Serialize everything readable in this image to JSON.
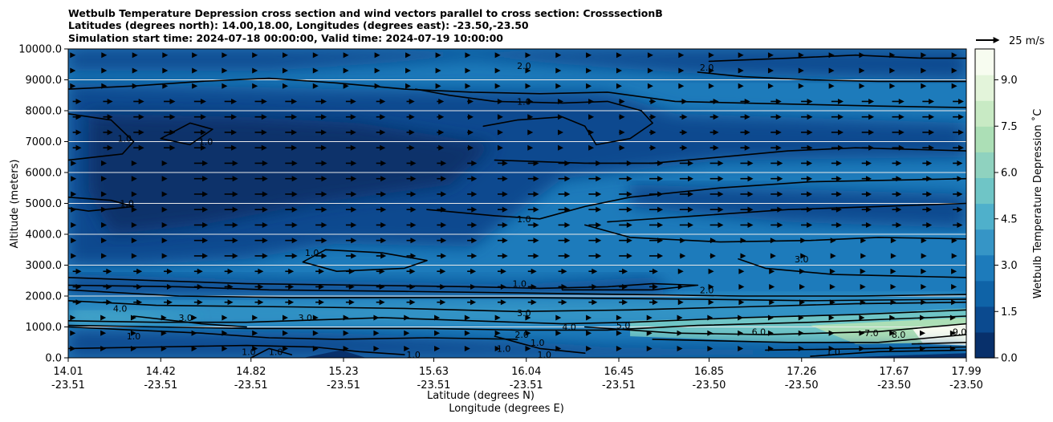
{
  "chart_data": {
    "type": "heatmap",
    "title_lines": [
      "Wetbulb Temperature Depression cross section and wind vectors parallel to cross section: CrosssectionB",
      "Latitudes (degrees north): 14.00,18.00, Longitudes (degrees east): -23.50,-23.50",
      "Simulation start time: 2024-07-18 00:00:00, Valid time: 2024-07-19 10:00:00"
    ],
    "xlabel": "Latitude (degrees N)",
    "xlabel2": "Longitude (degrees E)",
    "ylabel": "Altitude (meters)",
    "colorbar_label": "Wetbulb Temperature Depression ˚C",
    "quiver_key_label": "25 m/s",
    "xlim": [
      14.01,
      17.99
    ],
    "ylim": [
      0,
      10000
    ],
    "x_ticks": [
      {
        "lat": "14.01",
        "lon": "-23.51",
        "value": 14.01
      },
      {
        "lat": "14.42",
        "lon": "-23.51",
        "value": 14.42
      },
      {
        "lat": "14.82",
        "lon": "-23.51",
        "value": 14.82
      },
      {
        "lat": "15.23",
        "lon": "-23.51",
        "value": 15.23
      },
      {
        "lat": "15.63",
        "lon": "-23.51",
        "value": 15.63
      },
      {
        "lat": "16.04",
        "lon": "-23.51",
        "value": 16.04
      },
      {
        "lat": "16.45",
        "lon": "-23.51",
        "value": 16.45
      },
      {
        "lat": "16.85",
        "lon": "-23.50",
        "value": 16.85
      },
      {
        "lat": "17.26",
        "lon": "-23.50",
        "value": 17.26
      },
      {
        "lat": "17.67",
        "lon": "-23.50",
        "value": 17.67
      },
      {
        "lat": "17.99",
        "lon": "-23.50",
        "value": 17.99
      }
    ],
    "y_ticks": [
      "0.0",
      "1000.0",
      "2000.0",
      "3000.0",
      "4000.0",
      "5000.0",
      "6000.0",
      "7000.0",
      "8000.0",
      "9000.0",
      "10000.0"
    ],
    "y_tick_values": [
      0,
      1000,
      2000,
      3000,
      4000,
      5000,
      6000,
      7000,
      8000,
      9000,
      10000
    ],
    "colorbar_ticks": [
      "0.0",
      "1.5",
      "3.0",
      "4.5",
      "6.0",
      "7.5",
      "9.0"
    ],
    "colorbar_tick_values": [
      0,
      1.5,
      3.0,
      4.5,
      6.0,
      7.5,
      9.0
    ],
    "colorbar_range": [
      0,
      10
    ],
    "grid": "horizontal",
    "colors": {
      "cmap": [
        "#08306b",
        "#0b4a8f",
        "#0f63a7",
        "#1d7bbb",
        "#3695c6",
        "#4fb0cb",
        "#6fc5c6",
        "#8fd2bf",
        "#acdfb6",
        "#c8eac4",
        "#e3f4da",
        "#f7fcf0"
      ]
    },
    "contour_labels": [
      {
        "text": "2.0",
        "x": 16.03,
        "y": 9450
      },
      {
        "text": "2.0",
        "x": 16.84,
        "y": 9400
      },
      {
        "text": "1.0",
        "x": 16.03,
        "y": 8300
      },
      {
        "text": "1.0",
        "x": 14.26,
        "y": 7100
      },
      {
        "text": "1.0",
        "x": 14.62,
        "y": 7000
      },
      {
        "text": "1.0",
        "x": 14.27,
        "y": 5000
      },
      {
        "text": "1.0",
        "x": 16.03,
        "y": 4500
      },
      {
        "text": "1.0",
        "x": 15.09,
        "y": 3400
      },
      {
        "text": "3.0",
        "x": 17.26,
        "y": 3200
      },
      {
        "text": "1.0",
        "x": 16.01,
        "y": 2400
      },
      {
        "text": "2.0",
        "x": 16.84,
        "y": 2200
      },
      {
        "text": "4.0",
        "x": 14.24,
        "y": 1600
      },
      {
        "text": "3.0",
        "x": 14.53,
        "y": 1300
      },
      {
        "text": "3.0",
        "x": 15.06,
        "y": 1300
      },
      {
        "text": "3.0",
        "x": 16.03,
        "y": 1450
      },
      {
        "text": "5.0",
        "x": 16.47,
        "y": 1050
      },
      {
        "text": "4.0",
        "x": 16.23,
        "y": 1000
      },
      {
        "text": "6.0",
        "x": 17.07,
        "y": 850
      },
      {
        "text": "7.0",
        "x": 17.57,
        "y": 800
      },
      {
        "text": "8.0",
        "x": 17.69,
        "y": 750
      },
      {
        "text": "9.0",
        "x": 17.96,
        "y": 850
      },
      {
        "text": "2.0",
        "x": 16.02,
        "y": 750
      },
      {
        "text": "1.0",
        "x": 15.94,
        "y": 300
      },
      {
        "text": "1.0",
        "x": 16.09,
        "y": 500
      },
      {
        "text": "1.0",
        "x": 15.54,
        "y": 100
      },
      {
        "text": "1.0",
        "x": 16.12,
        "y": 100
      },
      {
        "text": "1.0",
        "x": 14.81,
        "y": 200
      },
      {
        "text": "1.0",
        "x": 14.93,
        "y": 200
      },
      {
        "text": "1.0",
        "x": 14.3,
        "y": 700
      },
      {
        "text": "1.0",
        "x": 17.4,
        "y": 200
      }
    ]
  }
}
